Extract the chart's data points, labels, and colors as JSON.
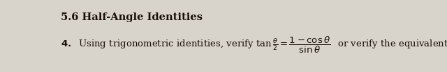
{
  "background_color": "#d8d4cc",
  "section_title": "5.6 Half-Angle Identities",
  "section_title_fontsize": 10.5,
  "problem_fontsize": 9.5,
  "text_color": "#1a1005"
}
